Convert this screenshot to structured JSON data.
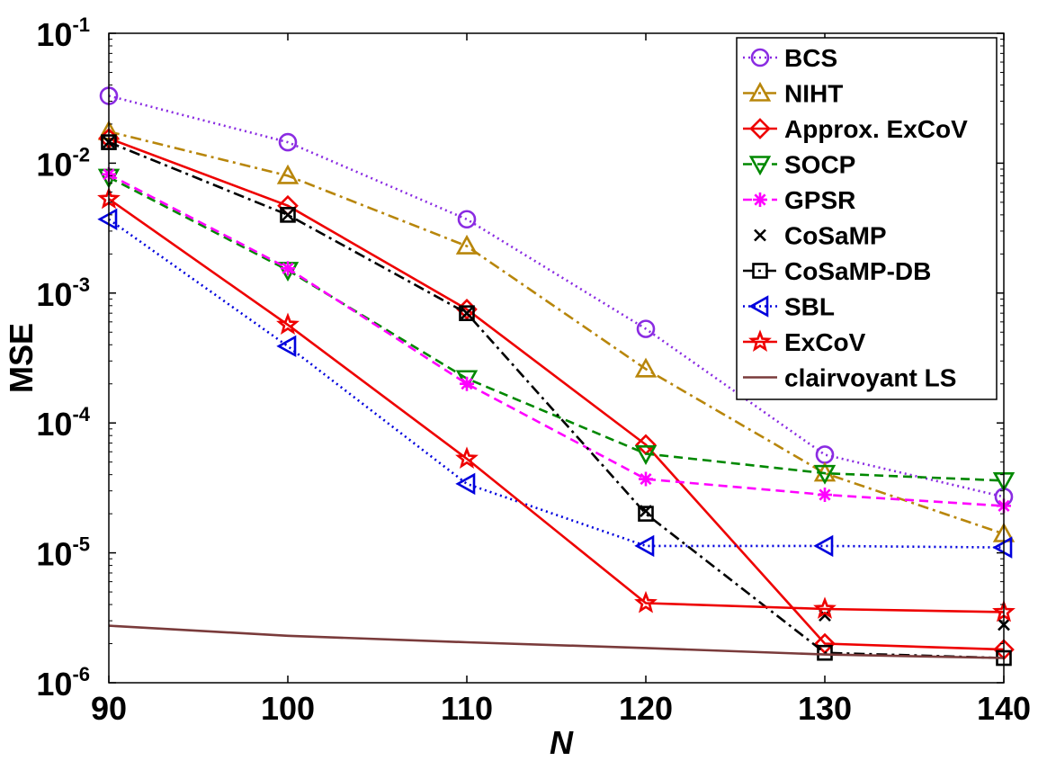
{
  "chart_data": {
    "type": "line",
    "xlabel": "N",
    "ylabel": "MSE",
    "x": [
      90,
      100,
      110,
      120,
      130,
      140
    ],
    "xlim": [
      90,
      140
    ],
    "ylim": [
      1e-06,
      0.1
    ],
    "yscale": "log",
    "x_ticks": [
      "90",
      "100",
      "110",
      "120",
      "130",
      "140"
    ],
    "y_ticks": [
      {
        "base": "10",
        "exp": "-6",
        "value": 1e-06
      },
      {
        "base": "10",
        "exp": "-5",
        "value": 1e-05
      },
      {
        "base": "10",
        "exp": "-4",
        "value": 0.0001
      },
      {
        "base": "10",
        "exp": "-3",
        "value": 0.001
      },
      {
        "base": "10",
        "exp": "-2",
        "value": 0.01
      },
      {
        "base": "10",
        "exp": "-1",
        "value": 0.1
      }
    ],
    "grid": false,
    "legend_position": "top-right",
    "series": [
      {
        "name": "BCS",
        "color": "#8a2be2",
        "dash": "dotted",
        "marker": "circle",
        "values": [
          0.033,
          0.0145,
          0.0037,
          0.00053,
          5.7e-05,
          2.7e-05
        ]
      },
      {
        "name": "NIHT",
        "color": "#b8860b",
        "dash": "dashdot",
        "marker": "triangle-up",
        "values": [
          0.0175,
          0.008,
          0.0023,
          0.00026,
          4.1e-05,
          1.4e-05
        ]
      },
      {
        "name": "Approx. ExCoV",
        "color": "#ee0000",
        "dash": "solid",
        "marker": "diamond",
        "values": [
          0.0155,
          0.0047,
          0.00075,
          6.8e-05,
          2e-06,
          1.8e-06
        ]
      },
      {
        "name": "SOCP",
        "color": "#008800",
        "dash": "dashed",
        "marker": "triangle-down",
        "values": [
          0.0078,
          0.0015,
          0.00022,
          5.8e-05,
          4.1e-05,
          3.6e-05
        ]
      },
      {
        "name": "GPSR",
        "color": "#ff00ff",
        "dash": "dashed",
        "marker": "asterisk",
        "values": [
          0.0082,
          0.00155,
          0.0002,
          3.7e-05,
          2.8e-05,
          2.3e-05
        ]
      },
      {
        "name": "CoSaMP",
        "color": "#000000",
        "dash": "none",
        "marker": "x",
        "values": [
          0.0145,
          0.004,
          0.0007,
          2.1e-05,
          3.3e-06,
          2.8e-06
        ]
      },
      {
        "name": "CoSaMP-DB",
        "color": "#000000",
        "dash": "dashdot",
        "marker": "square",
        "values": [
          0.0145,
          0.004,
          0.0007,
          2e-05,
          1.7e-06,
          1.55e-06
        ]
      },
      {
        "name": "SBL",
        "color": "#0000dd",
        "dash": "dotted",
        "marker": "triangle-left",
        "values": [
          0.0037,
          0.00039,
          3.4e-05,
          1.13e-05,
          1.13e-05,
          1.1e-05
        ]
      },
      {
        "name": "ExCoV",
        "color": "#ee0000",
        "dash": "solid",
        "marker": "star",
        "values": [
          0.0053,
          0.00057,
          5.3e-05,
          4.1e-06,
          3.7e-06,
          3.5e-06
        ]
      },
      {
        "name": "clairvoyant LS",
        "color": "#7a3b3b",
        "dash": "solid",
        "marker": "none",
        "values": [
          2.75e-06,
          2.3e-06,
          2.05e-06,
          1.85e-06,
          1.65e-06,
          1.55e-06
        ]
      }
    ]
  }
}
